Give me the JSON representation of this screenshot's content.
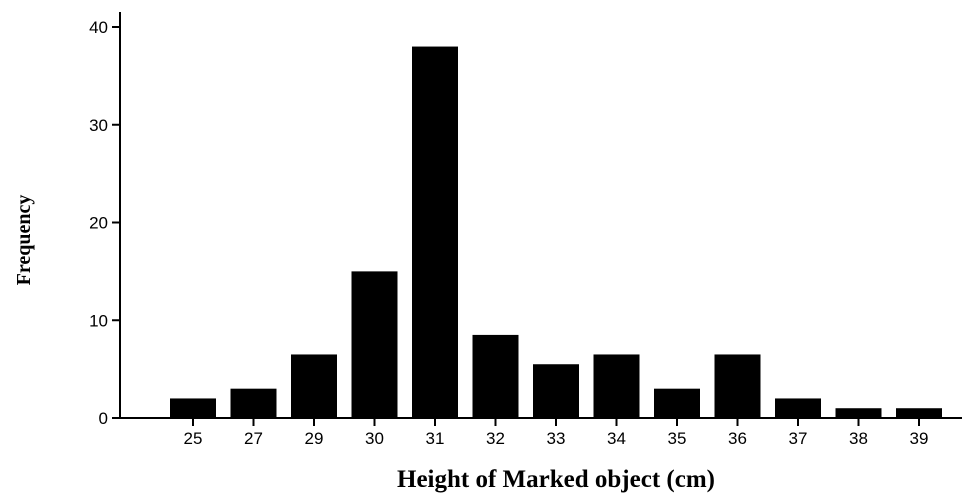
{
  "chart_data": {
    "type": "bar",
    "title": "",
    "xlabel": "Height of Marked object (cm)",
    "ylabel": "Frequency",
    "categories": [
      "25",
      "27",
      "29",
      "30",
      "31",
      "32",
      "33",
      "34",
      "35",
      "36",
      "37",
      "38",
      "39"
    ],
    "values": [
      2,
      3,
      6.5,
      15,
      38,
      8.5,
      5.5,
      6.5,
      3,
      6.5,
      2,
      1,
      1
    ],
    "ylim": [
      0,
      41
    ],
    "yticks": [
      0,
      10,
      20,
      30,
      40
    ],
    "grid": false,
    "legend": "none",
    "bar_color": "#000000"
  }
}
